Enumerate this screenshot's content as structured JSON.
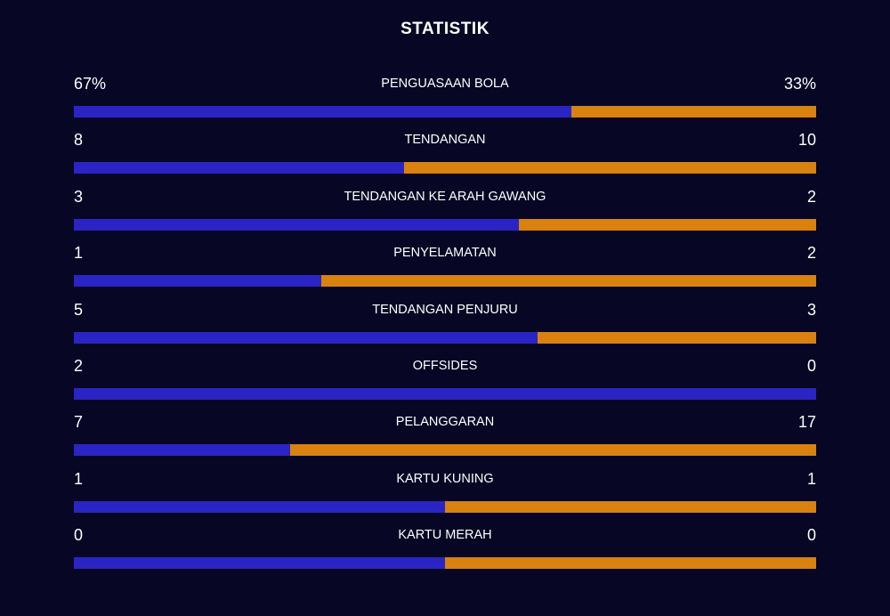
{
  "title": "STATISTIK",
  "colors": {
    "background": "#070725",
    "left_team": "#2b24c4",
    "right_team": "#d9820f"
  },
  "stats": [
    {
      "label": "PENGUASAAN BOLA",
      "left": "67%",
      "right": "33%",
      "left_share": 0.67
    },
    {
      "label": "TENDANGAN",
      "left": "8",
      "right": "10",
      "left_share": 0.4444
    },
    {
      "label": "TENDANGAN KE ARAH GAWANG",
      "left": "3",
      "right": "2",
      "left_share": 0.6
    },
    {
      "label": "PENYELAMATAN",
      "left": "1",
      "right": "2",
      "left_share": 0.3333
    },
    {
      "label": "TENDANGAN PENJURU",
      "left": "5",
      "right": "3",
      "left_share": 0.625
    },
    {
      "label": "OFFSIDES",
      "left": "2",
      "right": "0",
      "left_share": 1.0
    },
    {
      "label": "PELANGGARAN",
      "left": "7",
      "right": "17",
      "left_share": 0.2917
    },
    {
      "label": "KARTU KUNING",
      "left": "1",
      "right": "1",
      "left_share": 0.5
    },
    {
      "label": "KARTU MERAH",
      "left": "0",
      "right": "0",
      "left_share": 0.5
    }
  ]
}
